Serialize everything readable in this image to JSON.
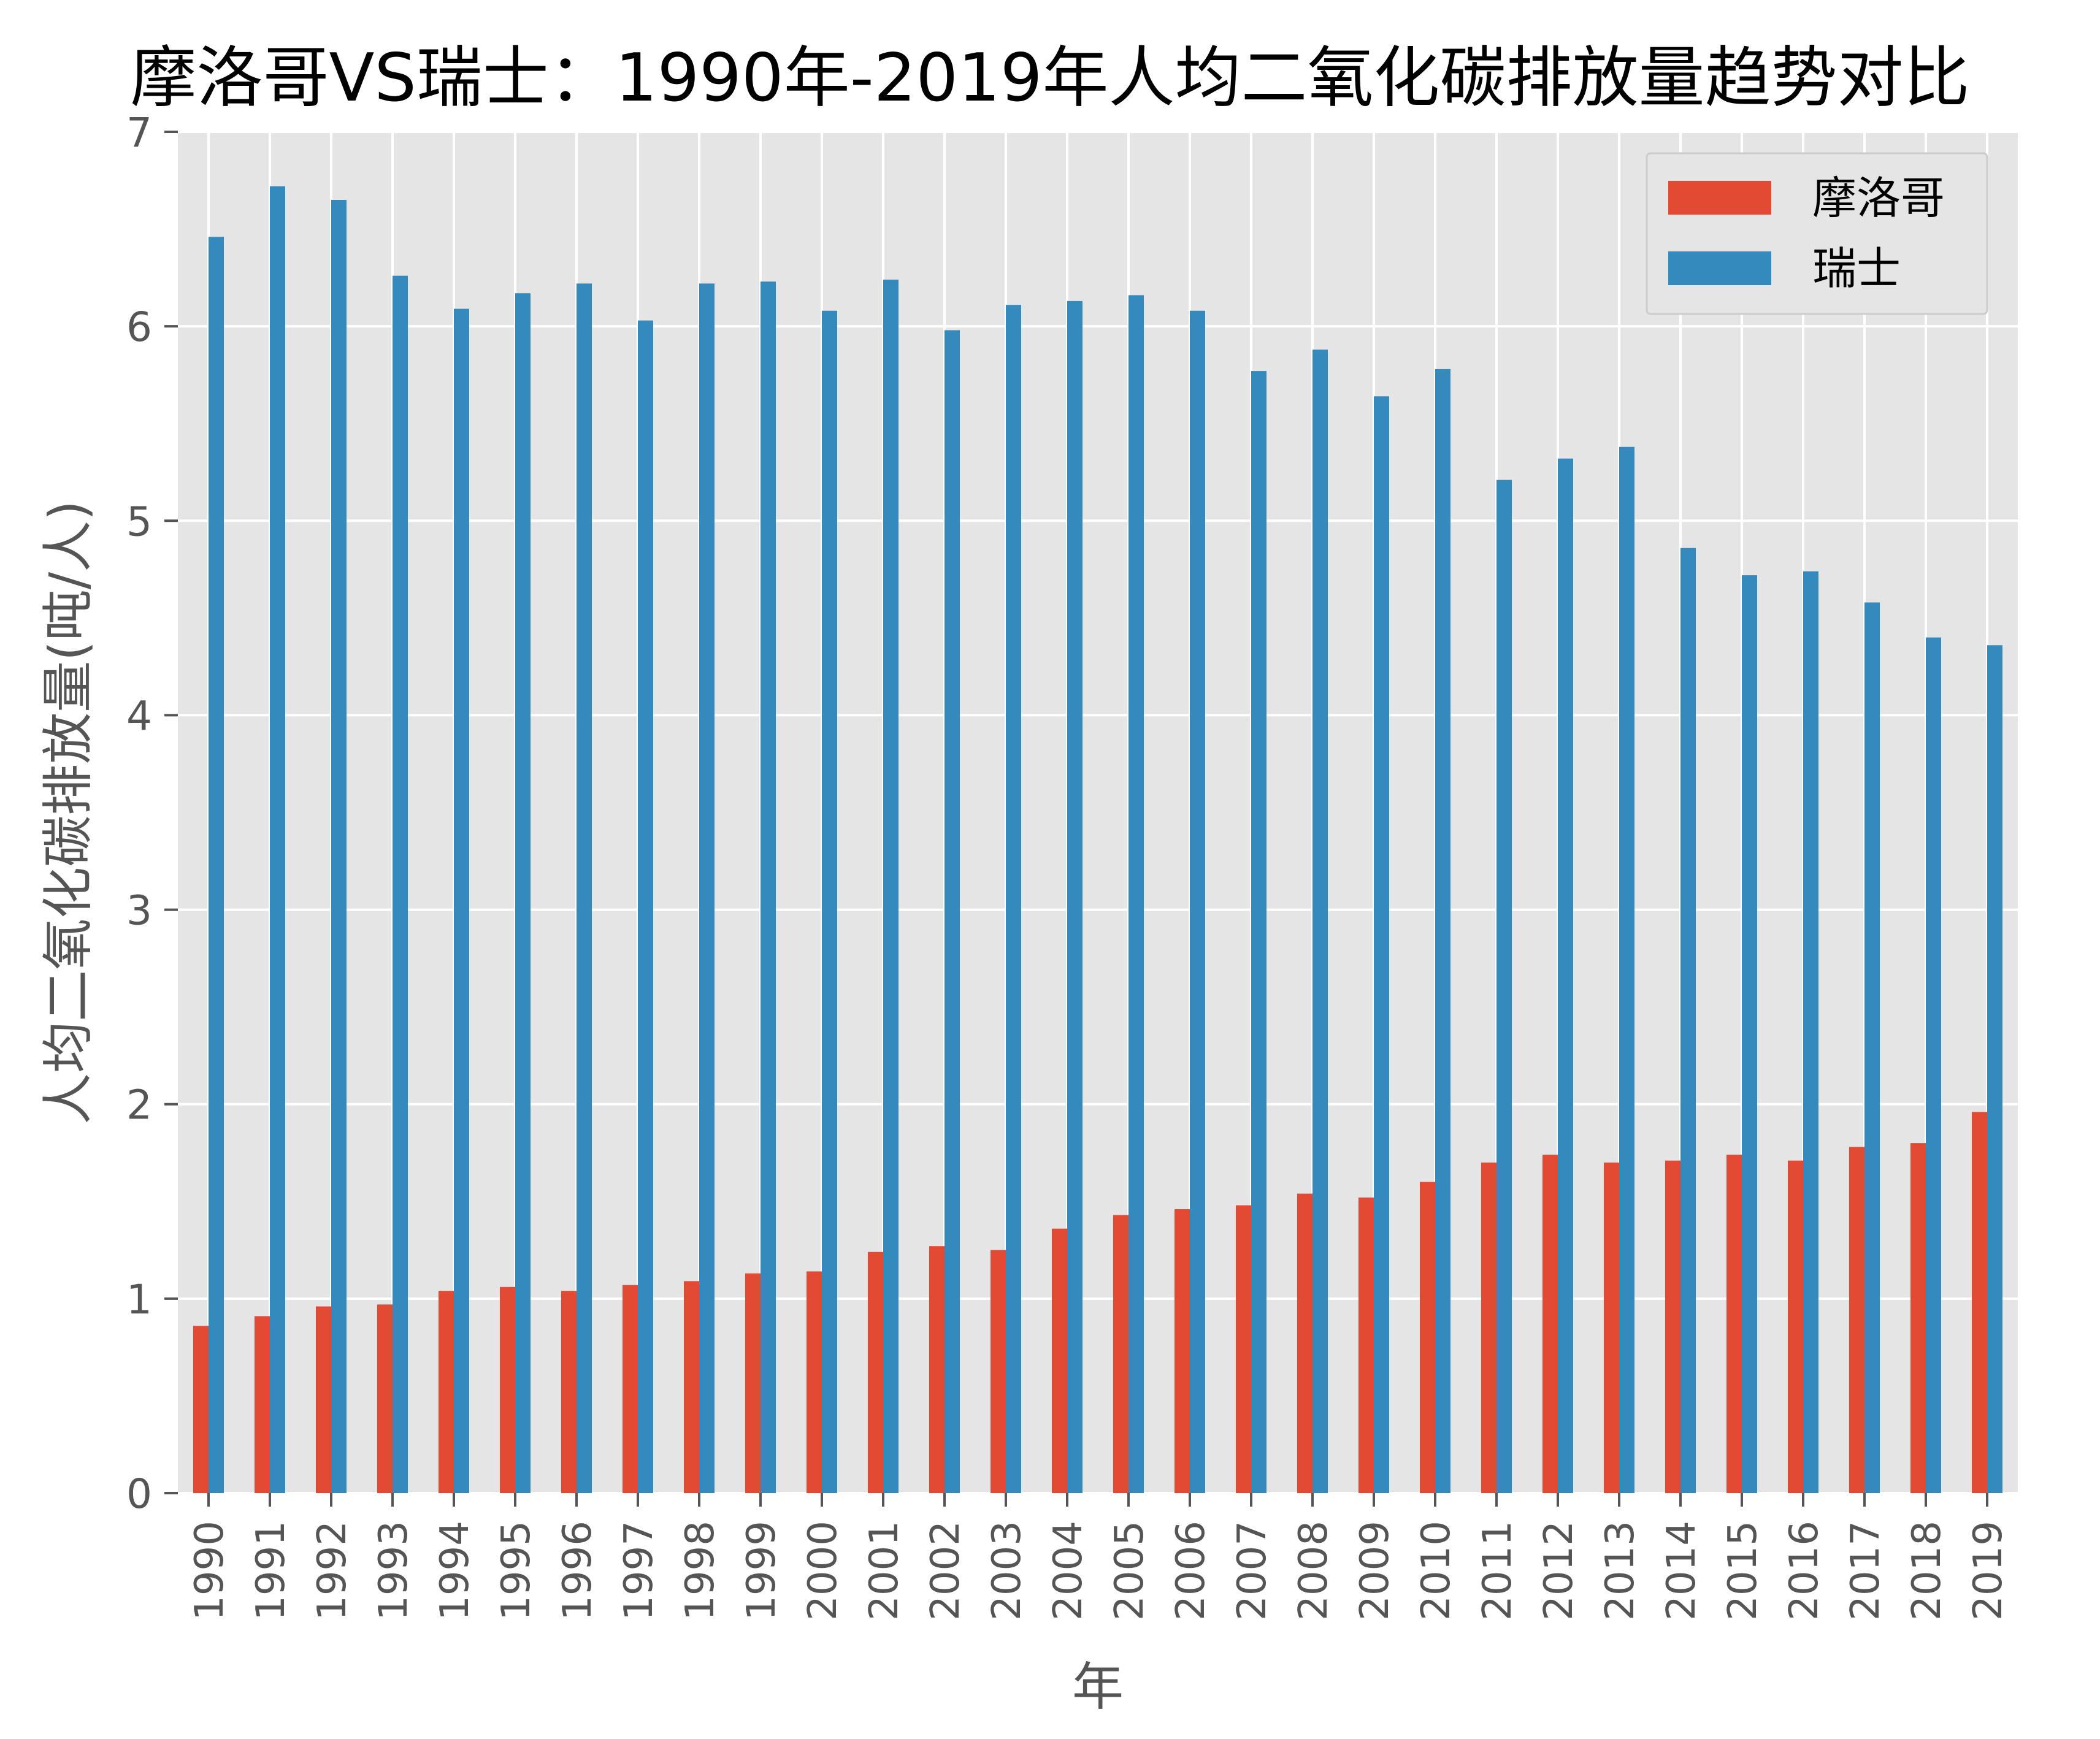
{
  "chart_data": {
    "type": "bar",
    "title": "摩洛哥VS瑞士：1990年-2019年人均二氧化碳排放量趋势对比",
    "xlabel": "年",
    "ylabel": "人均二氧化碳排放量(吨/人)",
    "ylim": [
      0,
      7
    ],
    "yticks": [
      "0",
      "1",
      "2",
      "3",
      "4",
      "5",
      "6",
      "7"
    ],
    "grid": true,
    "legend_position": "top-right",
    "categories": [
      "1990",
      "1991",
      "1992",
      "1993",
      "1994",
      "1995",
      "1996",
      "1997",
      "1998",
      "1999",
      "2000",
      "2001",
      "2002",
      "2003",
      "2004",
      "2005",
      "2006",
      "2007",
      "2008",
      "2009",
      "2010",
      "2011",
      "2012",
      "2013",
      "2014",
      "2015",
      "2016",
      "2017",
      "2018",
      "2019"
    ],
    "series": [
      {
        "name": "摩洛哥",
        "color": "#E24A33",
        "values": [
          0.86,
          0.91,
          0.96,
          0.97,
          1.04,
          1.06,
          1.04,
          1.07,
          1.09,
          1.13,
          1.14,
          1.24,
          1.27,
          1.25,
          1.36,
          1.43,
          1.46,
          1.48,
          1.54,
          1.52,
          1.6,
          1.7,
          1.74,
          1.7,
          1.71,
          1.74,
          1.71,
          1.78,
          1.8,
          1.96
        ]
      },
      {
        "name": "瑞士",
        "color": "#348ABD",
        "values": [
          6.46,
          6.72,
          6.65,
          6.26,
          6.09,
          6.17,
          6.22,
          6.03,
          6.22,
          6.23,
          6.08,
          6.24,
          5.98,
          6.11,
          6.13,
          6.16,
          6.08,
          5.77,
          5.88,
          5.64,
          5.78,
          5.21,
          5.32,
          5.38,
          4.86,
          4.72,
          4.74,
          4.58,
          4.4,
          4.36
        ]
      }
    ]
  }
}
